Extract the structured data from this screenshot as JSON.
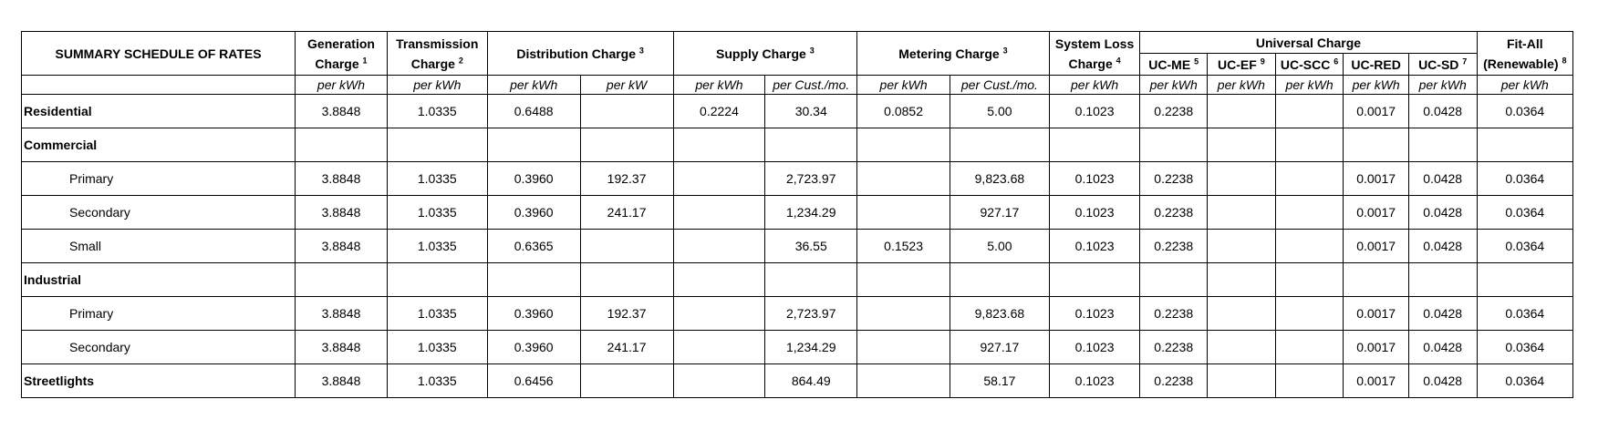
{
  "header": {
    "title": "SUMMARY SCHEDULE OF RATES",
    "generation": {
      "line1": "Generation",
      "line2": "Charge",
      "note": "1"
    },
    "transmission": {
      "line1": "Transmission",
      "line2": "Charge",
      "note": "2"
    },
    "distribution": {
      "label": "Distribution Charge",
      "note": "3"
    },
    "supply": {
      "label": "Supply Charge",
      "note": "3"
    },
    "metering": {
      "label": "Metering Charge",
      "note": "3"
    },
    "system_loss": {
      "line1": "System Loss",
      "line2": "Charge",
      "note": "4"
    },
    "universal": {
      "label": "Universal Charge"
    },
    "uc_me": {
      "label": "UC-ME",
      "note": "5"
    },
    "uc_ef": {
      "label": "UC-EF",
      "note": "9"
    },
    "uc_scc": {
      "label": "UC-SCC",
      "note": "6"
    },
    "uc_red": {
      "label": "UC-RED"
    },
    "uc_sd": {
      "label": "UC-SD",
      "note": "7"
    },
    "fit_all": {
      "line1": "Fit-All",
      "line2": "(Renewable)",
      "note": "8"
    }
  },
  "units": [
    "per kWh",
    "per kWh",
    "per kWh",
    "per kW",
    "per kWh",
    "per Cust./mo.",
    "per kWh",
    "per Cust./mo.",
    "per kWh",
    "per kWh",
    "per kWh",
    "per kWh",
    "per kWh",
    "per kWh",
    "per kWh"
  ],
  "rows": [
    {
      "label": "Residential",
      "kind": "main",
      "cells": [
        "3.8848",
        "1.0335",
        "0.6488",
        "",
        "0.2224",
        "30.34",
        "0.0852",
        "5.00",
        "0.1023",
        "0.2238",
        "",
        "",
        "0.0017",
        "0.0428",
        "0.0364"
      ]
    },
    {
      "label": "Commercial",
      "kind": "group",
      "cells": [
        "",
        "",
        "",
        "",
        "",
        "",
        "",
        "",
        "",
        "",
        "",
        "",
        "",
        "",
        ""
      ]
    },
    {
      "label": "Primary",
      "kind": "sub",
      "cells": [
        "3.8848",
        "1.0335",
        "0.3960",
        "192.37",
        "",
        "2,723.97",
        "",
        "9,823.68",
        "0.1023",
        "0.2238",
        "",
        "",
        "0.0017",
        "0.0428",
        "0.0364"
      ]
    },
    {
      "label": "Secondary",
      "kind": "sub",
      "cells": [
        "3.8848",
        "1.0335",
        "0.3960",
        "241.17",
        "",
        "1,234.29",
        "",
        "927.17",
        "0.1023",
        "0.2238",
        "",
        "",
        "0.0017",
        "0.0428",
        "0.0364"
      ]
    },
    {
      "label": "Small",
      "kind": "sub",
      "cells": [
        "3.8848",
        "1.0335",
        "0.6365",
        "",
        "",
        "36.55",
        "0.1523",
        "5.00",
        "0.1023",
        "0.2238",
        "",
        "",
        "0.0017",
        "0.0428",
        "0.0364"
      ]
    },
    {
      "label": "Industrial",
      "kind": "group",
      "cells": [
        "",
        "",
        "",
        "",
        "",
        "",
        "",
        "",
        "",
        "",
        "",
        "",
        "",
        "",
        ""
      ]
    },
    {
      "label": "Primary",
      "kind": "sub",
      "cells": [
        "3.8848",
        "1.0335",
        "0.3960",
        "192.37",
        "",
        "2,723.97",
        "",
        "9,823.68",
        "0.1023",
        "0.2238",
        "",
        "",
        "0.0017",
        "0.0428",
        "0.0364"
      ]
    },
    {
      "label": "Secondary",
      "kind": "sub",
      "cells": [
        "3.8848",
        "1.0335",
        "0.3960",
        "241.17",
        "",
        "1,234.29",
        "",
        "927.17",
        "0.1023",
        "0.2238",
        "",
        "",
        "0.0017",
        "0.0428",
        "0.0364"
      ]
    },
    {
      "label": "Streetlights",
      "kind": "main",
      "cells": [
        "3.8848",
        "1.0335",
        "0.6456",
        "",
        "",
        "864.49",
        "",
        "58.17",
        "0.1023",
        "0.2238",
        "",
        "",
        "0.0017",
        "0.0428",
        "0.0364"
      ]
    }
  ]
}
